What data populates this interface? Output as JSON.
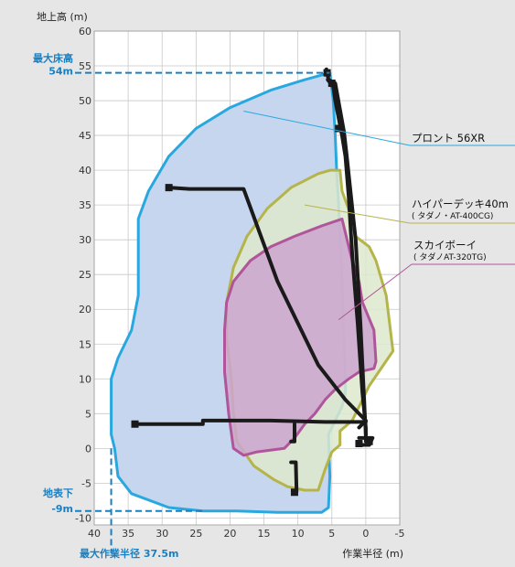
{
  "chart_data": {
    "type": "area",
    "ylabel": "地上高 (m)",
    "xlabel": "作業半径 (m)",
    "xlim": [
      40,
      -5
    ],
    "ylim": [
      -11,
      60
    ],
    "xticks": [
      40,
      35,
      30,
      25,
      20,
      15,
      10,
      5,
      0,
      -5
    ],
    "yticks": [
      60,
      55,
      50,
      45,
      40,
      35,
      30,
      25,
      20,
      15,
      10,
      5,
      0,
      -5,
      -10
    ],
    "grid": true,
    "colors": {
      "proton": "#29a8e0",
      "proton_fill": "#c6d6ee",
      "hyper": "#b5b44a",
      "hyper_fill": "#dde8cc",
      "sky": "#b0559a",
      "sky_fill": "#cda6cf",
      "annotation": "#1a7fc1",
      "boom": "#1a1a1a"
    },
    "annotations": {
      "max_height_label": "最大床高",
      "max_height_value": "54m",
      "below_ground_label": "地表下",
      "below_ground_value": "-9m",
      "max_radius_label": "最大作業半径 37.5m",
      "max_height": 54,
      "below_ground": -9,
      "max_radius": 37.5
    },
    "series": [
      {
        "name": "プロント 56XR",
        "sublabel": "",
        "points": [
          [
            5.3,
            54
          ],
          [
            9,
            53
          ],
          [
            14,
            51.5
          ],
          [
            20,
            49
          ],
          [
            25,
            46
          ],
          [
            29,
            42
          ],
          [
            32,
            37
          ],
          [
            33.5,
            33
          ],
          [
            33.5,
            22
          ],
          [
            34.5,
            17
          ],
          [
            36.5,
            13
          ],
          [
            37.5,
            10
          ],
          [
            37.5,
            2
          ],
          [
            37,
            0
          ],
          [
            36.5,
            -4
          ],
          [
            34.5,
            -6.5
          ],
          [
            29,
            -8.5
          ],
          [
            24,
            -9
          ],
          [
            19,
            -9
          ],
          [
            13,
            -9.2
          ],
          [
            6.5,
            -9.2
          ],
          [
            5.5,
            -8.5
          ],
          [
            5.3,
            -4
          ],
          [
            5.5,
            2
          ],
          [
            4.5,
            4
          ],
          [
            3.5,
            6
          ],
          [
            3,
            8
          ],
          [
            3,
            10
          ],
          [
            3.3,
            18
          ],
          [
            3.5,
            25
          ],
          [
            3.8,
            30
          ],
          [
            4,
            35
          ],
          [
            4.3,
            40
          ],
          [
            4.5,
            45
          ],
          [
            4.8,
            50
          ],
          [
            5.3,
            54
          ]
        ]
      },
      {
        "name": "ハイパーデッキ40m",
        "sublabel": "( タダノ・AT-400CG)",
        "points": [
          [
            5.2,
            40
          ],
          [
            7,
            39.5
          ],
          [
            11,
            37.5
          ],
          [
            14.5,
            34.5
          ],
          [
            17.5,
            30.5
          ],
          [
            19.5,
            26
          ],
          [
            20.5,
            21
          ],
          [
            20.5,
            16
          ],
          [
            19.8,
            10
          ],
          [
            19.5,
            5
          ],
          [
            19,
            1
          ],
          [
            16.5,
            -2.5
          ],
          [
            13.5,
            -4.5
          ],
          [
            11.5,
            -5.5
          ],
          [
            9,
            -6
          ],
          [
            7,
            -6
          ],
          [
            6,
            -3
          ],
          [
            5,
            -0.5
          ],
          [
            3.8,
            0.5
          ],
          [
            3.8,
            2.5
          ],
          [
            2,
            4
          ],
          [
            1,
            6
          ],
          [
            -0.5,
            9
          ],
          [
            -4,
            14
          ],
          [
            -3.5,
            18
          ],
          [
            -3,
            22
          ],
          [
            -1.5,
            27
          ],
          [
            -0.5,
            29
          ],
          [
            1.5,
            30.5
          ],
          [
            2,
            33
          ],
          [
            3.5,
            37
          ],
          [
            3.8,
            40
          ],
          [
            5.2,
            40
          ]
        ]
      },
      {
        "name": "スカイボーイ",
        "sublabel": "( タダノAT-320TG)",
        "points": [
          [
            3.5,
            33
          ],
          [
            6.5,
            32
          ],
          [
            10.5,
            30.5
          ],
          [
            14,
            29
          ],
          [
            17,
            27
          ],
          [
            19.5,
            24
          ],
          [
            20.5,
            21
          ],
          [
            20.8,
            17
          ],
          [
            20.8,
            11
          ],
          [
            20.2,
            5
          ],
          [
            19.5,
            0
          ],
          [
            18,
            -1
          ],
          [
            16,
            -0.5
          ],
          [
            12,
            0
          ],
          [
            10.5,
            1.5
          ],
          [
            9,
            3.5
          ],
          [
            7.5,
            5
          ],
          [
            6,
            7
          ],
          [
            4.5,
            8.5
          ],
          [
            2.5,
            10
          ],
          [
            1,
            11
          ],
          [
            -1.2,
            11.5
          ],
          [
            -1.5,
            12.5
          ],
          [
            -1.2,
            17
          ],
          [
            0.5,
            21
          ],
          [
            1,
            24
          ],
          [
            2,
            27
          ],
          [
            3.5,
            33
          ]
        ]
      }
    ],
    "booms": [
      [
        [
          5.6,
          53
        ],
        [
          4.8,
          52
        ],
        [
          4.5,
          50
        ],
        [
          3.5,
          45
        ],
        [
          3,
          42
        ],
        [
          2.5,
          36
        ],
        [
          2,
          28
        ],
        [
          1.2,
          18
        ],
        [
          0.5,
          8
        ],
        [
          0,
          3
        ],
        [
          0,
          1
        ],
        [
          -0.5,
          0.5
        ]
      ],
      [
        [
          5.8,
          54.5
        ],
        [
          5.5,
          53
        ],
        [
          4.5,
          52.5
        ],
        [
          3.2,
          45.5
        ],
        [
          2.8,
          42
        ],
        [
          1.5,
          30
        ],
        [
          0.8,
          18
        ],
        [
          0.3,
          8
        ],
        [
          0,
          2
        ]
      ],
      [
        [
          29,
          37.5
        ],
        [
          26,
          37.3
        ],
        [
          18,
          37.3
        ],
        [
          13,
          24
        ],
        [
          7,
          12
        ],
        [
          3,
          7
        ],
        [
          0,
          4
        ],
        [
          1,
          3
        ]
      ],
      [
        [
          34,
          3.5
        ],
        [
          29,
          3.5
        ],
        [
          24,
          3.5
        ],
        [
          24,
          4
        ],
        [
          14,
          4
        ],
        [
          6,
          3.8
        ],
        [
          0,
          3.8
        ]
      ],
      [
        [
          10.5,
          3.5
        ],
        [
          10.5,
          1
        ],
        [
          11,
          1
        ]
      ],
      [
        [
          10.2,
          -6.2
        ],
        [
          10.3,
          -2
        ],
        [
          11,
          -2
        ]
      ],
      [
        [
          1,
          0.5
        ],
        [
          -0.5,
          0.5
        ],
        [
          -1,
          1.5
        ],
        [
          1,
          1.5
        ]
      ]
    ],
    "boom_markers": [
      [
        5.7,
        54
      ],
      [
        5,
        52.5
      ],
      [
        4,
        46
      ],
      [
        29,
        37.5
      ],
      [
        34,
        3.5
      ],
      [
        10.5,
        -6.3
      ],
      [
        1,
        0.7
      ],
      [
        -0.5,
        1
      ]
    ]
  }
}
